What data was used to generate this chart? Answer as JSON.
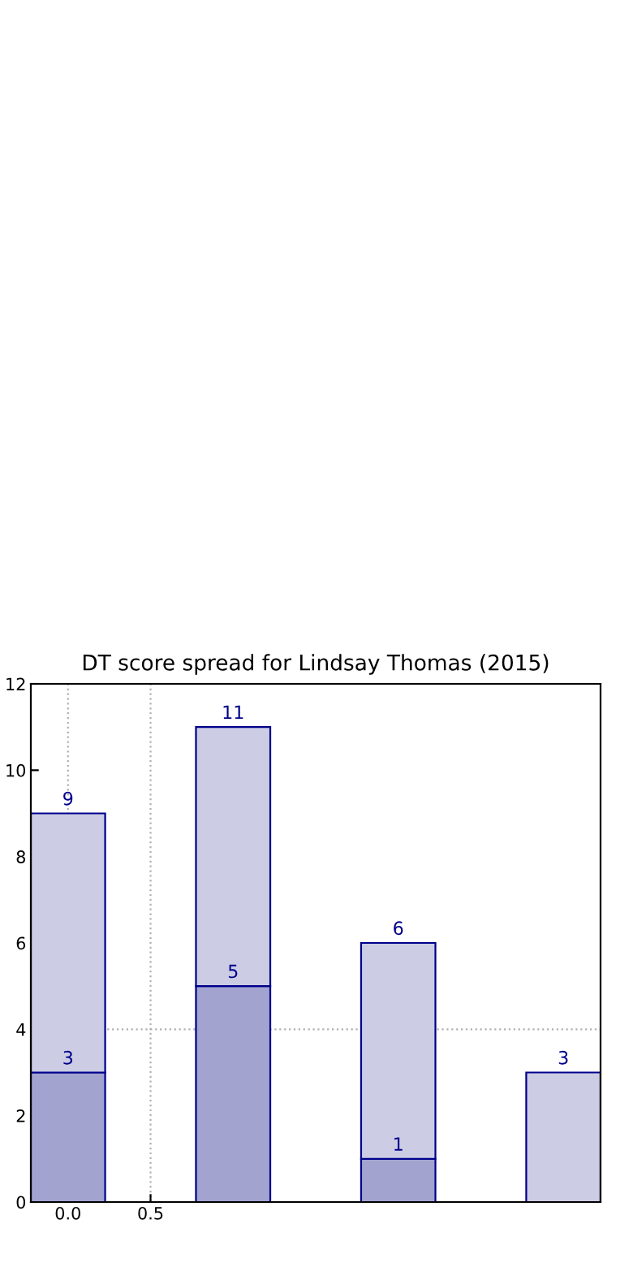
{
  "chart_data": {
    "type": "bar",
    "title": "DT score spread for Lindsay Thomas (2015)",
    "x": [
      0,
      1,
      2,
      3
    ],
    "series": [
      {
        "color": "#a3a3d0",
        "values": [
          3,
          5,
          1,
          null
        ],
        "value_labels": [
          "3",
          "5",
          "1",
          null
        ]
      },
      {
        "color": "#ccccE5",
        "values": [
          6,
          6,
          5,
          3
        ]
      }
    ],
    "stacked": true,
    "totals": [
      "9",
      "11",
      "6",
      "3"
    ],
    "xlim": [
      -0.225,
      3.225
    ],
    "xticks": [
      {
        "value": 0,
        "label": "0.0"
      },
      {
        "value": 0.5,
        "label": "0.5"
      }
    ],
    "ylim": [
      0,
      12
    ],
    "yticks": [
      0,
      2,
      4,
      6,
      8,
      10,
      12
    ],
    "grid": false,
    "ref_lines": [
      {
        "axis": "x",
        "value": 0,
        "color": "#b0b0b0",
        "line_style": "dotted"
      },
      {
        "axis": "x",
        "value": 0.5,
        "color": "#b0b0b0",
        "line_style": "dotted"
      },
      {
        "axis": "y",
        "value": 4,
        "color": "#b0b0b0",
        "line_style": "dotted"
      }
    ]
  }
}
